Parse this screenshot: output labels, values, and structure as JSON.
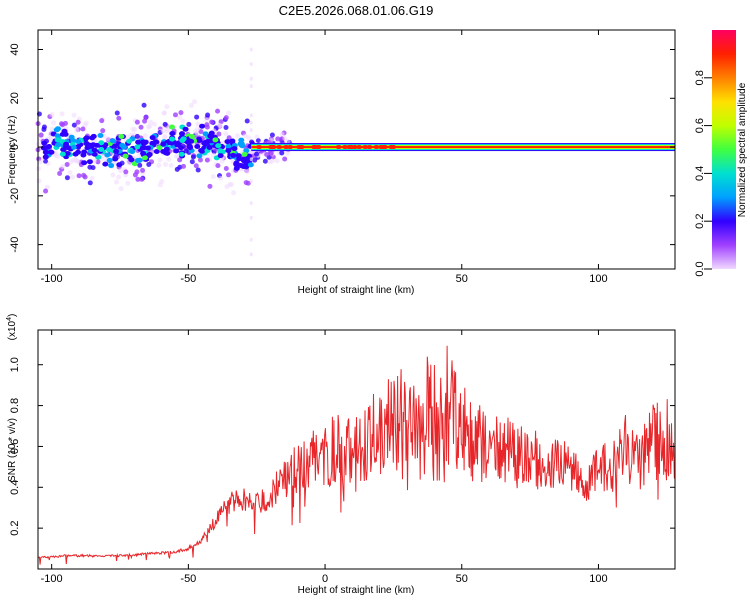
{
  "figure": {
    "title": "C2E5.2026.068.01.06.G19"
  },
  "chart_data": [
    {
      "type": "heatmap",
      "title": "",
      "xlabel": "Height of straight line (km)",
      "ylabel": "Frequency (Hz)",
      "xlim": [
        -105,
        128
      ],
      "ylim": [
        -50,
        48
      ],
      "xticks": [
        -100,
        -50,
        0,
        50,
        100
      ],
      "yticks": [
        -40,
        -20,
        0,
        20,
        40
      ],
      "grid": false,
      "description_points": [
        {
          "x": -100,
          "f": 3
        },
        {
          "x": -90,
          "f": 0
        },
        {
          "x": -80,
          "f": -2
        },
        {
          "x": -70,
          "f": -1
        },
        {
          "x": -60,
          "f": 1
        },
        {
          "x": -50,
          "f": 3
        },
        {
          "x": -40,
          "f": 1
        },
        {
          "x": -30,
          "f": -4
        },
        {
          "x": -25,
          "f": -2
        },
        {
          "x": -15,
          "f": 0
        },
        {
          "x": 0,
          "f": 0
        },
        {
          "x": 50,
          "f": 0
        },
        {
          "x": 128,
          "f": 0
        }
      ],
      "colorbar": {
        "label": "Normalized spectral amplitude",
        "range": [
          0,
          1
        ],
        "ticks": [
          "0.0",
          "0.2",
          "0.4",
          "0.6",
          "0.8"
        ],
        "colors": [
          "#f0d8ff",
          "#a040ff",
          "#3000ff",
          "#00a0ff",
          "#00e0d0",
          "#40ff40",
          "#c0ff00",
          "#ffe000",
          "#ff8000",
          "#ff2000",
          "#ff0060"
        ]
      }
    },
    {
      "type": "line",
      "title": "",
      "xlabel": "Height of straight line (km)",
      "ylabel": "SNR (10 * v/v)",
      "yscale_label": "(x10",
      "yscale_exp": "4",
      "xlim": [
        -105,
        128
      ],
      "ylim": [
        0,
        1.17
      ],
      "xticks": [
        -100,
        -50,
        0,
        50,
        100
      ],
      "yticks": [
        "0.2",
        "0.4",
        "0.6",
        "0.8",
        "1.0"
      ],
      "color": "#e8262a",
      "grid": false,
      "series": [
        {
          "name": "SNR",
          "x": [
            -105,
            -95,
            -85,
            -75,
            -65,
            -55,
            -50,
            -45,
            -40,
            -35,
            -30,
            -25,
            -20,
            -15,
            -10,
            -5,
            0,
            5,
            10,
            15,
            20,
            25,
            30,
            35,
            40,
            45,
            50,
            55,
            60,
            65,
            70,
            75,
            80,
            85,
            90,
            95,
            100,
            105,
            110,
            115,
            120,
            125,
            128
          ],
          "values": [
            0.06,
            0.07,
            0.07,
            0.07,
            0.08,
            0.09,
            0.11,
            0.16,
            0.27,
            0.38,
            0.4,
            0.38,
            0.42,
            0.55,
            0.62,
            0.68,
            0.73,
            0.78,
            0.76,
            0.82,
            0.92,
            1.02,
            1.07,
            1.07,
            1.07,
            1.1,
            0.92,
            0.85,
            0.74,
            0.78,
            0.75,
            0.72,
            0.63,
            0.68,
            0.63,
            0.48,
            0.64,
            0.62,
            0.76,
            0.65,
            0.82,
            0.85,
            0.62
          ]
        }
      ]
    }
  ]
}
